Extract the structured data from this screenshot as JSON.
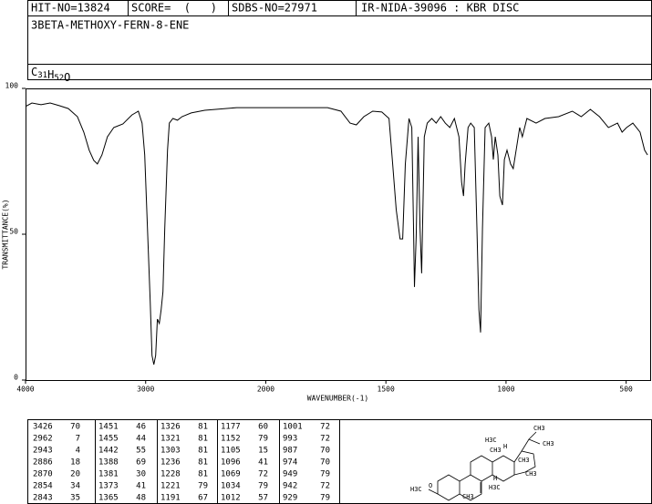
{
  "header": {
    "hit_no": "HIT-NO=13824",
    "score": "SCORE=  (   )",
    "sdbs_no": "SDBS-NO=27971",
    "method": "IR-NIDA-39096 : KBR DISC",
    "compound": "3BETA-METHOXY-FERN-8-ENE",
    "formula": "C31H52O"
  },
  "chart_data": {
    "type": "line",
    "xlabel": "WAVENUMBER(-1)",
    "ylabel": "TRANSMITTANCE(%)",
    "xlim": [
      4000,
      400
    ],
    "x_scale_break": 2000,
    "x_scale_factor": 2,
    "xticks": [
      4000,
      3000,
      2000,
      1500,
      1000,
      500
    ],
    "ylim": [
      0,
      100
    ],
    "yticks": [
      0,
      50,
      100
    ],
    "color": "#000000",
    "x": [
      4000,
      3947,
      3871,
      3795,
      3720,
      3644,
      3568,
      3515,
      3470,
      3432,
      3402,
      3364,
      3318,
      3265,
      3189,
      3114,
      3061,
      3030,
      3008,
      2985,
      2962,
      2947,
      2932,
      2917,
      2902,
      2886,
      2871,
      2856,
      2841,
      2818,
      2803,
      2773,
      2735,
      2697,
      2621,
      2508,
      2242,
      1970,
      1743,
      1687,
      1649,
      1623,
      1592,
      1555,
      1517,
      1487,
      1472,
      1457,
      1441,
      1430,
      1419,
      1404,
      1392,
      1385,
      1381,
      1374,
      1366,
      1358,
      1351,
      1340,
      1328,
      1309,
      1291,
      1272,
      1253,
      1234,
      1215,
      1196,
      1185,
      1177,
      1170,
      1158,
      1147,
      1132,
      1121,
      1113,
      1106,
      1098,
      1087,
      1072,
      1060,
      1053,
      1045,
      1034,
      1026,
      1015,
      1007,
      996,
      981,
      970,
      958,
      943,
      932,
      913,
      875,
      838,
      781,
      724,
      687,
      649,
      611,
      574,
      536,
      517,
      498,
      472,
      442,
      423,
      411
    ],
    "values": [
      93.8,
      95.0,
      94.4,
      95.0,
      94.1,
      93.1,
      90.3,
      85.0,
      78.8,
      75.3,
      74.1,
      77.2,
      83.4,
      86.6,
      87.8,
      90.9,
      92.2,
      88.1,
      77.2,
      52.2,
      27.2,
      8.4,
      5.3,
      8.4,
      20.9,
      19.4,
      24.1,
      30.3,
      52.2,
      78.8,
      88.1,
      89.7,
      89.1,
      90.3,
      91.6,
      92.5,
      93.4,
      93.4,
      93.4,
      92.2,
      88.1,
      87.5,
      90.3,
      92.2,
      91.9,
      89.7,
      74.1,
      58.4,
      48.4,
      48.4,
      74.1,
      89.7,
      86.6,
      52.2,
      31.9,
      49.1,
      83.4,
      52.2,
      36.6,
      83.4,
      88.1,
      89.7,
      88.1,
      90.3,
      88.1,
      86.6,
      89.7,
      83.4,
      67.8,
      63.1,
      74.1,
      86.6,
      88.1,
      86.6,
      52.2,
      24.1,
      16.3,
      52.2,
      86.6,
      88.1,
      83.4,
      75.6,
      83.4,
      77.2,
      63.1,
      60.0,
      75.6,
      78.8,
      74.1,
      72.5,
      78.8,
      86.6,
      83.4,
      89.7,
      88.1,
      89.7,
      90.3,
      92.2,
      90.3,
      92.8,
      90.3,
      86.6,
      88.1,
      85.0,
      86.6,
      88.1,
      85.0,
      78.8,
      77.2
    ]
  },
  "peak_table": {
    "columns": [
      [
        [
          3426,
          70
        ],
        [
          2962,
          7
        ],
        [
          2943,
          4
        ],
        [
          2886,
          18
        ],
        [
          2870,
          20
        ],
        [
          2854,
          34
        ],
        [
          2843,
          35
        ]
      ],
      [
        [
          1451,
          46
        ],
        [
          1455,
          44
        ],
        [
          1442,
          55
        ],
        [
          1388,
          69
        ],
        [
          1381,
          30
        ],
        [
          1373,
          41
        ],
        [
          1365,
          48
        ]
      ],
      [
        [
          1326,
          81
        ],
        [
          1321,
          81
        ],
        [
          1303,
          81
        ],
        [
          1236,
          81
        ],
        [
          1228,
          81
        ],
        [
          1221,
          79
        ],
        [
          1191,
          67
        ]
      ],
      [
        [
          1177,
          60
        ],
        [
          1152,
          79
        ],
        [
          1105,
          15
        ],
        [
          1096,
          41
        ],
        [
          1069,
          72
        ],
        [
          1034,
          79
        ],
        [
          1012,
          57
        ]
      ],
      [
        [
          1001,
          72
        ],
        [
          993,
          72
        ],
        [
          987,
          70
        ],
        [
          974,
          70
        ],
        [
          949,
          79
        ],
        [
          942,
          72
        ],
        [
          929,
          79
        ]
      ]
    ]
  },
  "structure": {
    "labels": [
      "CH3",
      "CH3",
      "H3C",
      "H",
      "CH3",
      "CH3",
      "CH3",
      "H",
      "H3C",
      "O",
      "H3C",
      "CH3"
    ]
  }
}
